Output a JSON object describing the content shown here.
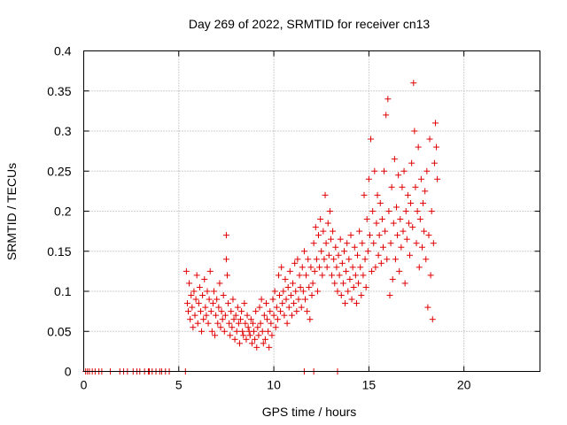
{
  "chart_data": {
    "type": "scatter",
    "title": "Day 269 of 2022, SRMTID for receiver cn13",
    "xlabel": "GPS time / hours",
    "ylabel": "SRMTID / TECUs",
    "xlim": [
      0,
      24
    ],
    "ylim": [
      0,
      0.4
    ],
    "x_ticks": [
      0,
      5,
      10,
      15,
      20
    ],
    "y_ticks": [
      0,
      0.05,
      0.1,
      0.15,
      0.2,
      0.25,
      0.3,
      0.35,
      0.4
    ],
    "y_tick_labels": [
      "0",
      "0.05",
      "0.1",
      "0.15",
      "0.2",
      "0.25",
      "0.3",
      "0.35",
      "0.4"
    ],
    "grid": true,
    "marker": "plus",
    "color": "#e00000",
    "series": [
      {
        "name": "cn13",
        "points": [
          [
            0.1,
            0
          ],
          [
            0.2,
            0
          ],
          [
            0.3,
            0
          ],
          [
            0.45,
            0
          ],
          [
            0.6,
            0
          ],
          [
            0.8,
            0
          ],
          [
            0.95,
            0
          ],
          [
            1.4,
            0
          ],
          [
            1.9,
            0
          ],
          [
            2.1,
            0
          ],
          [
            2.3,
            0
          ],
          [
            2.6,
            0
          ],
          [
            2.8,
            0
          ],
          [
            2.95,
            0
          ],
          [
            3.2,
            0
          ],
          [
            3.4,
            0
          ],
          [
            3.45,
            0
          ],
          [
            3.6,
            0
          ],
          [
            3.8,
            0
          ],
          [
            4.0,
            0
          ],
          [
            4.1,
            0
          ],
          [
            4.3,
            0
          ],
          [
            4.5,
            0
          ],
          [
            5.35,
            0
          ],
          [
            11.6,
            0
          ],
          [
            12.1,
            0
          ],
          [
            13.35,
            0
          ],
          [
            5.4,
            0.125
          ],
          [
            5.45,
            0.085
          ],
          [
            5.5,
            0.075
          ],
          [
            5.55,
            0.11
          ],
          [
            5.6,
            0.065
          ],
          [
            5.65,
            0.095
          ],
          [
            5.7,
            0.08
          ],
          [
            5.75,
            0.055
          ],
          [
            5.8,
            0.1
          ],
          [
            5.85,
            0.07
          ],
          [
            5.9,
            0.09
          ],
          [
            5.95,
            0.12
          ],
          [
            6.0,
            0.06
          ],
          [
            6.05,
            0.085
          ],
          [
            6.1,
            0.105
          ],
          [
            6.15,
            0.075
          ],
          [
            6.2,
            0.05
          ],
          [
            6.25,
            0.095
          ],
          [
            6.3,
            0.065
          ],
          [
            6.35,
            0.115
          ],
          [
            6.4,
            0.08
          ],
          [
            6.45,
            0.07
          ],
          [
            6.5,
            0.1
          ],
          [
            6.55,
            0.06
          ],
          [
            6.6,
            0.09
          ],
          [
            6.65,
            0.125
          ],
          [
            6.7,
            0.075
          ],
          [
            6.75,
            0.05
          ],
          [
            6.8,
            0.085
          ],
          [
            6.85,
            0.1
          ],
          [
            6.9,
            0.045
          ],
          [
            6.95,
            0.07
          ],
          [
            7.0,
            0.09
          ],
          [
            7.05,
            0.06
          ],
          [
            7.1,
            0.08
          ],
          [
            7.15,
            0.11
          ],
          [
            7.2,
            0.055
          ],
          [
            7.25,
            0.075
          ],
          [
            7.3,
            0.065
          ],
          [
            7.35,
            0.095
          ],
          [
            7.4,
            0.05
          ],
          [
            7.45,
            0.07
          ],
          [
            7.5,
            0.17
          ],
          [
            7.5,
            0.14
          ],
          [
            7.55,
            0.12
          ],
          [
            7.6,
            0.085
          ],
          [
            7.65,
            0.06
          ],
          [
            7.7,
            0.045
          ],
          [
            7.75,
            0.075
          ],
          [
            7.8,
            0.055
          ],
          [
            7.85,
            0.09
          ],
          [
            7.9,
            0.065
          ],
          [
            7.95,
            0.04
          ],
          [
            8.0,
            0.07
          ],
          [
            8.05,
            0.05
          ],
          [
            8.1,
            0.08
          ],
          [
            8.15,
            0.06
          ],
          [
            8.2,
            0.035
          ],
          [
            8.25,
            0.065
          ],
          [
            8.3,
            0.075
          ],
          [
            8.35,
            0.05
          ],
          [
            8.4,
            0.045
          ],
          [
            8.45,
            0.085
          ],
          [
            8.5,
            0.06
          ],
          [
            8.55,
            0.04
          ],
          [
            8.6,
            0.07
          ],
          [
            8.65,
            0.055
          ],
          [
            8.7,
            0.05
          ],
          [
            8.75,
            0.045
          ],
          [
            8.8,
            0.065
          ],
          [
            8.85,
            0.035
          ],
          [
            8.9,
            0.06
          ],
          [
            8.95,
            0.05
          ],
          [
            9.0,
            0.04
          ],
          [
            9.05,
            0.075
          ],
          [
            9.1,
            0.03
          ],
          [
            9.15,
            0.055
          ],
          [
            9.2,
            0.045
          ],
          [
            9.25,
            0.08
          ],
          [
            9.3,
            0.06
          ],
          [
            9.35,
            0.09
          ],
          [
            9.4,
            0.05
          ],
          [
            9.45,
            0.035
          ],
          [
            9.5,
            0.07
          ],
          [
            9.55,
            0.04
          ],
          [
            9.6,
            0.085
          ],
          [
            9.65,
            0.065
          ],
          [
            9.7,
            0.05
          ],
          [
            9.75,
            0.03
          ],
          [
            9.8,
            0.075
          ],
          [
            9.85,
            0.06
          ],
          [
            9.9,
            0.045
          ],
          [
            9.95,
            0.09
          ],
          [
            10.0,
            0.07
          ],
          [
            10.05,
            0.1
          ],
          [
            10.1,
            0.055
          ],
          [
            10.15,
            0.08
          ],
          [
            10.2,
            0.065
          ],
          [
            10.25,
            0.12
          ],
          [
            10.3,
            0.095
          ],
          [
            10.35,
            0.075
          ],
          [
            10.4,
            0.13
          ],
          [
            10.45,
            0.085
          ],
          [
            10.5,
            0.1
          ],
          [
            10.55,
            0.07
          ],
          [
            10.6,
            0.115
          ],
          [
            10.65,
            0.09
          ],
          [
            10.7,
            0.06
          ],
          [
            10.75,
            0.105
          ],
          [
            10.8,
            0.08
          ],
          [
            10.85,
            0.125
          ],
          [
            10.9,
            0.095
          ],
          [
            10.95,
            0.07
          ],
          [
            11.0,
            0.11
          ],
          [
            11.05,
            0.085
          ],
          [
            11.1,
            0.135
          ],
          [
            11.15,
            0.1
          ],
          [
            11.2,
            0.075
          ],
          [
            11.25,
            0.14
          ],
          [
            11.3,
            0.09
          ],
          [
            11.35,
            0.12
          ],
          [
            11.4,
            0.105
          ],
          [
            11.45,
            0.08
          ],
          [
            11.5,
            0.13
          ],
          [
            11.55,
            0.1
          ],
          [
            11.6,
            0.15
          ],
          [
            11.65,
            0.09
          ],
          [
            11.7,
            0.12
          ],
          [
            11.75,
            0.075
          ],
          [
            11.8,
            0.14
          ],
          [
            11.85,
            0.105
          ],
          [
            11.9,
            0.065
          ],
          [
            11.95,
            0.13
          ],
          [
            12.0,
            0.095
          ],
          [
            12.05,
            0.11
          ],
          [
            12.1,
            0.16
          ],
          [
            12.15,
            0.125
          ],
          [
            12.2,
            0.18
          ],
          [
            12.25,
            0.14
          ],
          [
            12.3,
            0.1
          ],
          [
            12.35,
            0.17
          ],
          [
            12.4,
            0.13
          ],
          [
            12.45,
            0.19
          ],
          [
            12.5,
            0.15
          ],
          [
            12.55,
            0.12
          ],
          [
            12.6,
            0.175
          ],
          [
            12.65,
            0.14
          ],
          [
            12.7,
            0.22
          ],
          [
            12.75,
            0.16
          ],
          [
            12.8,
            0.13
          ],
          [
            12.85,
            0.185
          ],
          [
            12.9,
            0.145
          ],
          [
            12.95,
            0.2
          ],
          [
            13.0,
            0.165
          ],
          [
            13.05,
            0.12
          ],
          [
            13.1,
            0.175
          ],
          [
            13.15,
            0.14
          ],
          [
            13.2,
            0.11
          ],
          [
            13.25,
            0.155
          ],
          [
            13.3,
            0.13
          ],
          [
            13.35,
            0.1
          ],
          [
            13.4,
            0.145
          ],
          [
            13.45,
            0.12
          ],
          [
            13.5,
            0.165
          ],
          [
            13.55,
            0.095
          ],
          [
            13.6,
            0.135
          ],
          [
            13.65,
            0.11
          ],
          [
            13.7,
            0.15
          ],
          [
            13.75,
            0.085
          ],
          [
            13.8,
            0.125
          ],
          [
            13.85,
            0.16
          ],
          [
            13.9,
            0.1
          ],
          [
            13.95,
            0.14
          ],
          [
            14.0,
            0.115
          ],
          [
            14.05,
            0.17
          ],
          [
            14.1,
            0.09
          ],
          [
            14.15,
            0.13
          ],
          [
            14.2,
            0.105
          ],
          [
            14.25,
            0.155
          ],
          [
            14.3,
            0.12
          ],
          [
            14.35,
            0.085
          ],
          [
            14.4,
            0.145
          ],
          [
            14.45,
            0.11
          ],
          [
            14.5,
            0.175
          ],
          [
            14.55,
            0.13
          ],
          [
            14.6,
            0.095
          ],
          [
            14.65,
            0.16
          ],
          [
            14.7,
            0.12
          ],
          [
            14.75,
            0.22
          ],
          [
            14.8,
            0.14
          ],
          [
            14.85,
            0.105
          ],
          [
            14.9,
            0.19
          ],
          [
            14.95,
            0.15
          ],
          [
            15.0,
            0.24
          ],
          [
            15.05,
            0.17
          ],
          [
            15.1,
            0.29
          ],
          [
            15.15,
            0.125
          ],
          [
            15.2,
            0.2
          ],
          [
            15.25,
            0.16
          ],
          [
            15.3,
            0.25
          ],
          [
            15.35,
            0.13
          ],
          [
            15.4,
            0.185
          ],
          [
            15.45,
            0.22
          ],
          [
            15.5,
            0.145
          ],
          [
            15.55,
            0.17
          ],
          [
            15.6,
            0.21
          ],
          [
            15.65,
            0.135
          ],
          [
            15.7,
            0.19
          ],
          [
            15.75,
            0.155
          ],
          [
            15.8,
            0.25
          ],
          [
            15.85,
            0.175
          ],
          [
            15.9,
            0.32
          ],
          [
            15.95,
            0.14
          ],
          [
            16.0,
            0.34
          ],
          [
            16.05,
            0.2
          ],
          [
            16.1,
            0.095
          ],
          [
            16.15,
            0.16
          ],
          [
            16.2,
            0.23
          ],
          [
            16.25,
            0.115
          ],
          [
            16.3,
            0.185
          ],
          [
            16.35,
            0.265
          ],
          [
            16.4,
            0.14
          ],
          [
            16.45,
            0.205
          ],
          [
            16.5,
            0.17
          ],
          [
            16.55,
            0.245
          ],
          [
            16.6,
            0.125
          ],
          [
            16.65,
            0.19
          ],
          [
            16.7,
            0.155
          ],
          [
            16.75,
            0.23
          ],
          [
            16.8,
            0.175
          ],
          [
            16.85,
            0.25
          ],
          [
            16.9,
            0.11
          ],
          [
            16.95,
            0.2
          ],
          [
            17.0,
            0.165
          ],
          [
            17.05,
            0.22
          ],
          [
            17.1,
            0.185
          ],
          [
            17.15,
            0.145
          ],
          [
            17.2,
            0.21
          ],
          [
            17.25,
            0.26
          ],
          [
            17.3,
            0.18
          ],
          [
            17.35,
            0.36
          ],
          [
            17.4,
            0.3
          ],
          [
            17.45,
            0.23
          ],
          [
            17.5,
            0.16
          ],
          [
            17.55,
            0.2
          ],
          [
            17.6,
            0.28
          ],
          [
            17.65,
            0.13
          ],
          [
            17.7,
            0.19
          ],
          [
            17.75,
            0.24
          ],
          [
            17.8,
            0.155
          ],
          [
            17.85,
            0.21
          ],
          [
            17.9,
            0.175
          ],
          [
            17.95,
            0.225
          ],
          [
            18.0,
            0.14
          ],
          [
            18.05,
            0.25
          ],
          [
            18.1,
            0.08
          ],
          [
            18.15,
            0.17
          ],
          [
            18.2,
            0.29
          ],
          [
            18.25,
            0.12
          ],
          [
            18.3,
            0.2
          ],
          [
            18.35,
            0.065
          ],
          [
            18.4,
            0.16
          ],
          [
            18.45,
            0.26
          ],
          [
            18.5,
            0.31
          ],
          [
            18.55,
            0.28
          ],
          [
            18.6,
            0.24
          ]
        ]
      }
    ]
  }
}
